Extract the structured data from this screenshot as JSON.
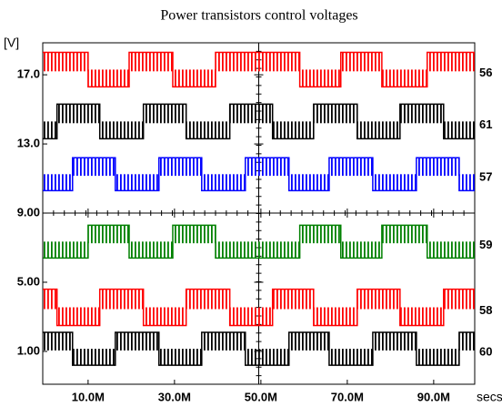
{
  "chart_data": {
    "type": "step",
    "title": "Power transistors control voltages",
    "y_label": "[V]",
    "x_label": "secs",
    "xlim": [
      -0.5,
      99.5
    ],
    "xticks": [
      {
        "value": 10,
        "label": "10.0M"
      },
      {
        "value": 30,
        "label": "30.0M"
      },
      {
        "value": 50,
        "label": "50.0M"
      },
      {
        "value": 70,
        "label": "70.0M"
      },
      {
        "value": 90,
        "label": "90.0M"
      }
    ],
    "ylim": [
      -0.9,
      18.85
    ],
    "yticks": [
      {
        "value": 1,
        "label": "1.00"
      },
      {
        "value": 5,
        "label": "5.00"
      },
      {
        "value": 9,
        "label": "9.00"
      },
      {
        "value": 13,
        "label": "13.0"
      },
      {
        "value": 17,
        "label": "17.0"
      }
    ],
    "series": [
      {
        "name": "56",
        "color": "#ff0000",
        "x": [
          -0.5,
          10,
          19.5,
          29.6,
          39.5,
          59,
          68.5,
          78,
          88.5,
          99.5
        ],
        "values": [
          18.3,
          16.3,
          18.3,
          16.3,
          18.3,
          16.3,
          18.3,
          16.3,
          18.3,
          18.3
        ]
      },
      {
        "name": "61",
        "color": "#000000",
        "x": [
          -0.5,
          2.8,
          12.7,
          22.8,
          32.7,
          42.8,
          52.7,
          62.2,
          72.3,
          82.2,
          92.3,
          99.5
        ],
        "values": [
          13.3,
          15.3,
          13.3,
          15.3,
          13.3,
          15.3,
          13.3,
          15.3,
          13.3,
          15.3,
          13.3,
          13.3
        ]
      },
      {
        "name": "57",
        "color": "#0000ff",
        "x": [
          -0.5,
          6.4,
          16.3,
          26.4,
          36.3,
          46.4,
          56.5,
          65.8,
          75.9,
          86,
          95.9,
          99.5
        ],
        "values": [
          10.3,
          12.2,
          10.3,
          12.2,
          10.3,
          12.2,
          10.3,
          12.2,
          10.3,
          12.2,
          10.3,
          10.3
        ]
      },
      {
        "name": "59",
        "color": "#008000",
        "x": [
          -0.5,
          10,
          19.5,
          29.6,
          39.5,
          59,
          68.5,
          78,
          88.5,
          99.5
        ],
        "values": [
          6.4,
          8.3,
          6.4,
          8.3,
          6.4,
          8.3,
          6.4,
          8.3,
          6.4,
          6.4
        ]
      },
      {
        "name": "58",
        "color": "#ff0000",
        "x": [
          -0.5,
          2.8,
          12.7,
          22.8,
          32.7,
          42.8,
          52.7,
          62.2,
          72.3,
          82.2,
          92.3,
          99.5
        ],
        "values": [
          4.6,
          2.5,
          4.6,
          2.5,
          4.6,
          2.5,
          4.6,
          2.5,
          4.6,
          2.5,
          4.6,
          4.6
        ]
      },
      {
        "name": "60",
        "color": "#000000",
        "x": [
          -0.5,
          6.4,
          16.3,
          26.4,
          36.3,
          46.4,
          56.5,
          65.8,
          75.9,
          86,
          95.9,
          99.5
        ],
        "values": [
          2.1,
          0.2,
          2.1,
          0.2,
          2.1,
          0.2,
          2.1,
          0.2,
          2.1,
          0.2,
          2.1,
          2.1
        ]
      }
    ]
  }
}
